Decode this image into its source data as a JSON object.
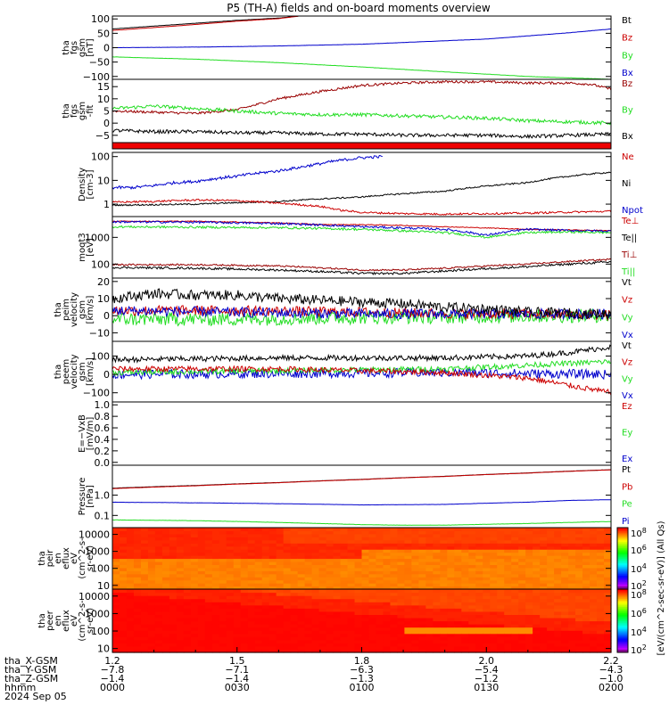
{
  "title": "P5 (TH-A) fields and on-board moments overview",
  "colors": {
    "black": "#000000",
    "red": "#cc0000",
    "green": "#22dd22",
    "blue": "#0000cc",
    "dark_red": "#990000"
  },
  "chart_data": [
    {
      "id": "p1",
      "type": "line",
      "ylabel": [
        "tha",
        "fgs",
        "gsm",
        "[nT]"
      ],
      "yticks": [
        {
          "v": 100,
          "l": "100"
        },
        {
          "v": 50,
          "l": "50"
        },
        {
          "v": 0,
          "l": "0"
        },
        {
          "v": -50,
          "l": "−50"
        },
        {
          "v": -100,
          "l": "−100"
        }
      ],
      "ylim": [
        -110,
        110
      ],
      "log": false,
      "legend": [
        {
          "t": "Bt",
          "c": "black"
        },
        {
          "t": "Bz",
          "c": "red"
        },
        {
          "t": "By",
          "c": "green"
        },
        {
          "t": "Bx",
          "c": "blue"
        }
      ],
      "series": [
        {
          "c": "black",
          "noise": 0.3,
          "x": [
            0,
            15,
            30,
            40,
            45
          ],
          "y": [
            65,
            80,
            95,
            103,
            110
          ]
        },
        {
          "c": "red",
          "noise": 0.3,
          "x": [
            0,
            15,
            30,
            40,
            45
          ],
          "y": [
            60,
            75,
            92,
            101,
            110
          ]
        },
        {
          "c": "blue",
          "noise": 0.3,
          "x": [
            0,
            20,
            40,
            60,
            90,
            110,
            120
          ],
          "y": [
            0,
            2,
            6,
            12,
            30,
            52,
            65
          ]
        },
        {
          "c": "green",
          "noise": 0.4,
          "x": [
            0,
            20,
            40,
            60,
            80,
            100,
            120
          ],
          "y": [
            -32,
            -40,
            -52,
            -67,
            -84,
            -100,
            -110
          ]
        }
      ]
    },
    {
      "id": "p2",
      "type": "line",
      "ylabel": [
        "tha",
        "fgs",
        "gsm",
        "-fit"
      ],
      "yticks": [
        {
          "v": 15,
          "l": "15"
        },
        {
          "v": 10,
          "l": "10"
        },
        {
          "v": 5,
          "l": "5"
        },
        {
          "v": 0,
          "l": "0"
        },
        {
          "v": -5,
          "l": "−5"
        }
      ],
      "ylim": [
        -8,
        18
      ],
      "log": false,
      "legend": [
        {
          "t": "Bz",
          "c": "dark_red"
        },
        {
          "t": "By",
          "c": "green"
        },
        {
          "t": "Bx",
          "c": "black"
        }
      ],
      "series": [
        {
          "c": "dark_red",
          "noise": 0.5,
          "x": [
            0,
            10,
            20,
            30,
            40,
            50,
            60,
            70,
            80,
            90,
            100,
            110,
            115,
            120
          ],
          "y": [
            5,
            4.5,
            4,
            5.5,
            10,
            13,
            15.5,
            16.5,
            17,
            17,
            16.5,
            16.5,
            16,
            14
          ]
        },
        {
          "c": "green",
          "noise": 0.7,
          "x": [
            0,
            10,
            20,
            30,
            40,
            50,
            60,
            70,
            80,
            90,
            100,
            110,
            120
          ],
          "y": [
            6,
            7,
            6,
            5,
            4,
            3.5,
            3.5,
            3,
            2.5,
            2,
            1,
            0.5,
            0
          ]
        },
        {
          "c": "black",
          "noise": 0.7,
          "x": [
            0,
            10,
            20,
            30,
            40,
            50,
            60,
            70,
            80,
            90,
            100,
            110,
            120
          ],
          "y": [
            -3,
            -3.5,
            -3.5,
            -4,
            -4,
            -4.5,
            -4.5,
            -5,
            -5,
            -5,
            -5.5,
            -5,
            -4.5
          ]
        }
      ]
    },
    {
      "id": "p3",
      "type": "line",
      "ylabel": [
        "Density",
        "[cm-3]"
      ],
      "yticks": [
        {
          "v": 100,
          "l": "100"
        },
        {
          "v": 10,
          "l": "10"
        },
        {
          "v": 1,
          "l": "1"
        }
      ],
      "ylim": [
        0.3,
        150
      ],
      "log": true,
      "legend": [
        {
          "t": "Ne",
          "c": "red"
        },
        {
          "t": "Ni",
          "c": "black"
        },
        {
          "t": "Npot",
          "c": "blue"
        }
      ],
      "series": [
        {
          "c": "blue",
          "noise": 0.06,
          "x": [
            0,
            5,
            10,
            15,
            20,
            25,
            30,
            35,
            40,
            45,
            50,
            55,
            60,
            65
          ],
          "y": [
            5,
            5,
            6,
            8,
            9,
            12,
            15,
            20,
            25,
            35,
            50,
            70,
            90,
            100
          ]
        },
        {
          "c": "black",
          "noise": 0.03,
          "x": [
            0,
            20,
            40,
            60,
            80,
            100,
            120
          ],
          "y": [
            0.9,
            1.0,
            1.3,
            2,
            3.5,
            8,
            22
          ]
        },
        {
          "c": "red",
          "noise": 0.04,
          "x": [
            0,
            10,
            20,
            30,
            40,
            50,
            55,
            60,
            70,
            80,
            100,
            120
          ],
          "y": [
            1.2,
            1.3,
            1.5,
            1.4,
            1.1,
            0.8,
            0.55,
            0.45,
            0.4,
            0.38,
            0.42,
            0.5
          ]
        }
      ]
    },
    {
      "id": "p4",
      "type": "line",
      "ylabel": [
        "moqt3",
        "[eV]"
      ],
      "yticks": [
        {
          "v": 1000,
          "l": "1000"
        },
        {
          "v": 100,
          "l": "100"
        }
      ],
      "ylim": [
        30,
        6000
      ],
      "log": true,
      "legend": [
        {
          "t": "Te⊥",
          "c": "red"
        },
        {
          "t": "Te||",
          "c": "black"
        },
        {
          "t": "Ti⊥",
          "c": "dark_red"
        },
        {
          "t": "Ti||",
          "c": "green"
        }
      ],
      "series": [
        {
          "c": "red",
          "noise": 0.015,
          "x": [
            0,
            20,
            40,
            50,
            60,
            70,
            80,
            100,
            120
          ],
          "y": [
            4000,
            4000,
            3500,
            3000,
            3000,
            2800,
            2500,
            2000,
            1800
          ]
        },
        {
          "c": "blue",
          "noise": 0.04,
          "x": [
            0,
            20,
            40,
            60,
            80,
            90,
            100,
            110,
            120
          ],
          "y": [
            3800,
            3700,
            3300,
            2500,
            2000,
            1200,
            2000,
            1800,
            1700
          ]
        },
        {
          "c": "green",
          "noise": 0.04,
          "x": [
            0,
            20,
            40,
            60,
            80,
            90,
            100,
            110,
            120
          ],
          "y": [
            2500,
            2400,
            2300,
            2000,
            1500,
            1000,
            1500,
            1600,
            1500
          ]
        },
        {
          "c": "dark_red",
          "noise": 0.03,
          "x": [
            0,
            20,
            40,
            60,
            70,
            80,
            100,
            120
          ],
          "y": [
            95,
            95,
            85,
            60,
            60,
            70,
            100,
            150
          ]
        },
        {
          "c": "black",
          "noise": 0.04,
          "x": [
            0,
            20,
            40,
            60,
            70,
            80,
            100,
            120
          ],
          "y": [
            75,
            70,
            60,
            45,
            45,
            55,
            80,
            120
          ]
        }
      ]
    },
    {
      "id": "p5",
      "type": "line",
      "ylabel": [
        "tha",
        "peim",
        "velocity",
        "gsm",
        "[km/s]"
      ],
      "yticks": [
        {
          "v": 20,
          "l": "20"
        },
        {
          "v": 10,
          "l": "10"
        },
        {
          "v": 0,
          "l": "0"
        },
        {
          "v": -10,
          "l": "−10"
        }
      ],
      "ylim": [
        -15,
        22
      ],
      "log": false,
      "legend": [
        {
          "t": "Vt",
          "c": "black"
        },
        {
          "t": "Vz",
          "c": "red"
        },
        {
          "t": "Vy",
          "c": "green"
        },
        {
          "t": "Vx",
          "c": "blue"
        }
      ],
      "series": [
        {
          "c": "green",
          "noise": 4,
          "x": [
            0,
            30,
            60,
            90,
            120
          ],
          "y": [
            -2,
            -2,
            -1,
            -0.5,
            0
          ]
        },
        {
          "c": "red",
          "noise": 3,
          "x": [
            0,
            30,
            60,
            90,
            120
          ],
          "y": [
            3,
            3,
            2,
            1,
            0.5
          ]
        },
        {
          "c": "blue",
          "noise": 3,
          "x": [
            0,
            30,
            60,
            90,
            120
          ],
          "y": [
            3,
            2,
            1,
            1,
            1
          ]
        },
        {
          "c": "black",
          "noise": 3,
          "x": [
            0,
            10,
            20,
            30,
            40,
            50,
            60,
            70,
            80,
            90,
            100,
            110,
            120
          ],
          "y": [
            10,
            13,
            12,
            12,
            10,
            9,
            8,
            7,
            5,
            4,
            2,
            1.5,
            1
          ]
        }
      ]
    },
    {
      "id": "p6",
      "type": "line",
      "ylabel": [
        "tha",
        "peem",
        "velocity",
        "gsm",
        "[km/s]"
      ],
      "yticks": [
        {
          "v": 100,
          "l": "100"
        },
        {
          "v": 0,
          "l": "0"
        },
        {
          "v": -100,
          "l": "−100"
        }
      ],
      "ylim": [
        -150,
        180
      ],
      "log": false,
      "legend": [
        {
          "t": "Vt",
          "c": "black"
        },
        {
          "t": "Vz",
          "c": "red"
        },
        {
          "t": "Vy",
          "c": "green"
        },
        {
          "t": "Vx",
          "c": "blue"
        }
      ],
      "series": [
        {
          "c": "blue",
          "noise": 25,
          "x": [
            0,
            40,
            80,
            120
          ],
          "y": [
            0,
            5,
            10,
            0
          ]
        },
        {
          "c": "green",
          "noise": 15,
          "x": [
            0,
            40,
            80,
            100,
            120
          ],
          "y": [
            10,
            20,
            30,
            50,
            70
          ]
        },
        {
          "c": "red",
          "noise": 15,
          "x": [
            0,
            40,
            80,
            100,
            110,
            120
          ],
          "y": [
            30,
            30,
            10,
            -20,
            -60,
            -100
          ]
        },
        {
          "c": "black",
          "noise": 15,
          "x": [
            0,
            40,
            80,
            100,
            110,
            120
          ],
          "y": [
            80,
            90,
            90,
            100,
            120,
            150
          ]
        }
      ]
    },
    {
      "id": "p7",
      "type": "line",
      "ylabel": [
        "E=−VxB",
        "[mV/m]"
      ],
      "yticks": [
        {
          "v": 1.0,
          "l": "1.0"
        },
        {
          "v": 0.8,
          "l": "0.8"
        },
        {
          "v": 0.6,
          "l": "0.6"
        },
        {
          "v": 0.4,
          "l": "0.4"
        },
        {
          "v": 0.2,
          "l": "0.2"
        },
        {
          "v": 0.0,
          "l": "0.0"
        }
      ],
      "ylim": [
        -0.05,
        1.05
      ],
      "log": false,
      "legend": [
        {
          "t": "Ez",
          "c": "red"
        },
        {
          "t": "Ey",
          "c": "green"
        },
        {
          "t": "Ex",
          "c": "blue"
        }
      ],
      "series": []
    },
    {
      "id": "p8",
      "type": "line",
      "ylabel": [
        "Pressure",
        "[nPa]"
      ],
      "yticks": [
        {
          "v": 1.0,
          "l": "1.0"
        },
        {
          "v": 0.1,
          "l": "0.1"
        }
      ],
      "ylim": [
        0.025,
        30
      ],
      "log": true,
      "legend": [
        {
          "t": "Pt",
          "c": "black"
        },
        {
          "t": "Pb",
          "c": "red"
        },
        {
          "t": "Pe",
          "c": "green"
        },
        {
          "t": "Pi",
          "c": "blue"
        }
      ],
      "series": [
        {
          "c": "black",
          "noise": 0.004,
          "x": [
            0,
            20,
            40,
            60,
            80,
            100,
            120
          ],
          "y": [
            2.2,
            3,
            4.2,
            6,
            8.5,
            12.5,
            18
          ]
        },
        {
          "c": "red",
          "noise": 0.004,
          "x": [
            0,
            20,
            40,
            60,
            80,
            100,
            120
          ],
          "y": [
            2.1,
            2.9,
            4.1,
            5.9,
            8.4,
            12.3,
            17.8
          ]
        },
        {
          "c": "blue",
          "noise": 0.004,
          "x": [
            0,
            20,
            40,
            60,
            80,
            100,
            110,
            120
          ],
          "y": [
            0.45,
            0.42,
            0.38,
            0.33,
            0.35,
            0.45,
            0.55,
            0.6
          ]
        },
        {
          "c": "green",
          "noise": 0.006,
          "x": [
            0,
            20,
            40,
            60,
            70,
            80,
            100,
            120
          ],
          "y": [
            0.06,
            0.055,
            0.045,
            0.035,
            0.033,
            0.033,
            0.04,
            0.05
          ]
        }
      ]
    },
    {
      "id": "p9",
      "type": "heatmap",
      "ylabel": [
        "tha",
        "peir",
        "en",
        "eflux",
        "eV",
        "(cm^2-s-",
        "sr-eV)"
      ],
      "yticks": [
        {
          "v": 10000,
          "l": "10000"
        },
        {
          "v": 1000,
          "l": "1000"
        },
        {
          "v": 100,
          "l": "100"
        },
        {
          "v": 10,
          "l": "10"
        }
      ],
      "ylim": [
        6,
        25000
      ],
      "log": true
    },
    {
      "id": "p10",
      "type": "heatmap",
      "ylabel": [
        "tha",
        "peer",
        "en",
        "eflux",
        "eV",
        "(cm^2-s-",
        "sr-eV)"
      ],
      "yticks": [
        {
          "v": 10000,
          "l": "10000"
        },
        {
          "v": 1000,
          "l": "1000"
        },
        {
          "v": 100,
          "l": "100"
        },
        {
          "v": 10,
          "l": "10"
        }
      ],
      "ylim": [
        6,
        25000
      ],
      "log": true
    }
  ],
  "colorbar": {
    "label": "[eV/(cm^2-sec-sr-eV)] (All Qs)",
    "upper_ticks": [
      "10^8",
      "10^6",
      "10^4",
      "10^2"
    ],
    "lower_ticks": [
      "10^8",
      "10^6",
      "10^4",
      "10^2"
    ]
  },
  "xaxis": {
    "range_minutes": [
      0,
      120
    ],
    "row_labels": [
      "tha_X-GSM",
      "tha_Y-GSM",
      "tha_Z-GSM",
      "hhmm",
      "2024 Sep 05"
    ],
    "ticks": [
      {
        "m": 0,
        "vals": [
          "1.2",
          "−7.8",
          "−1.4",
          "0000"
        ]
      },
      {
        "m": 30,
        "vals": [
          "1.5",
          "−7.1",
          "−1.4",
          "0030"
        ]
      },
      {
        "m": 60,
        "vals": [
          "1.8",
          "−6.3",
          "−1.3",
          "0100"
        ]
      },
      {
        "m": 90,
        "vals": [
          "2.0",
          "−5.4",
          "−1.2",
          "0130"
        ]
      },
      {
        "m": 120,
        "vals": [
          "2.2",
          "−4.3",
          "−1.0",
          "0200"
        ]
      }
    ]
  }
}
